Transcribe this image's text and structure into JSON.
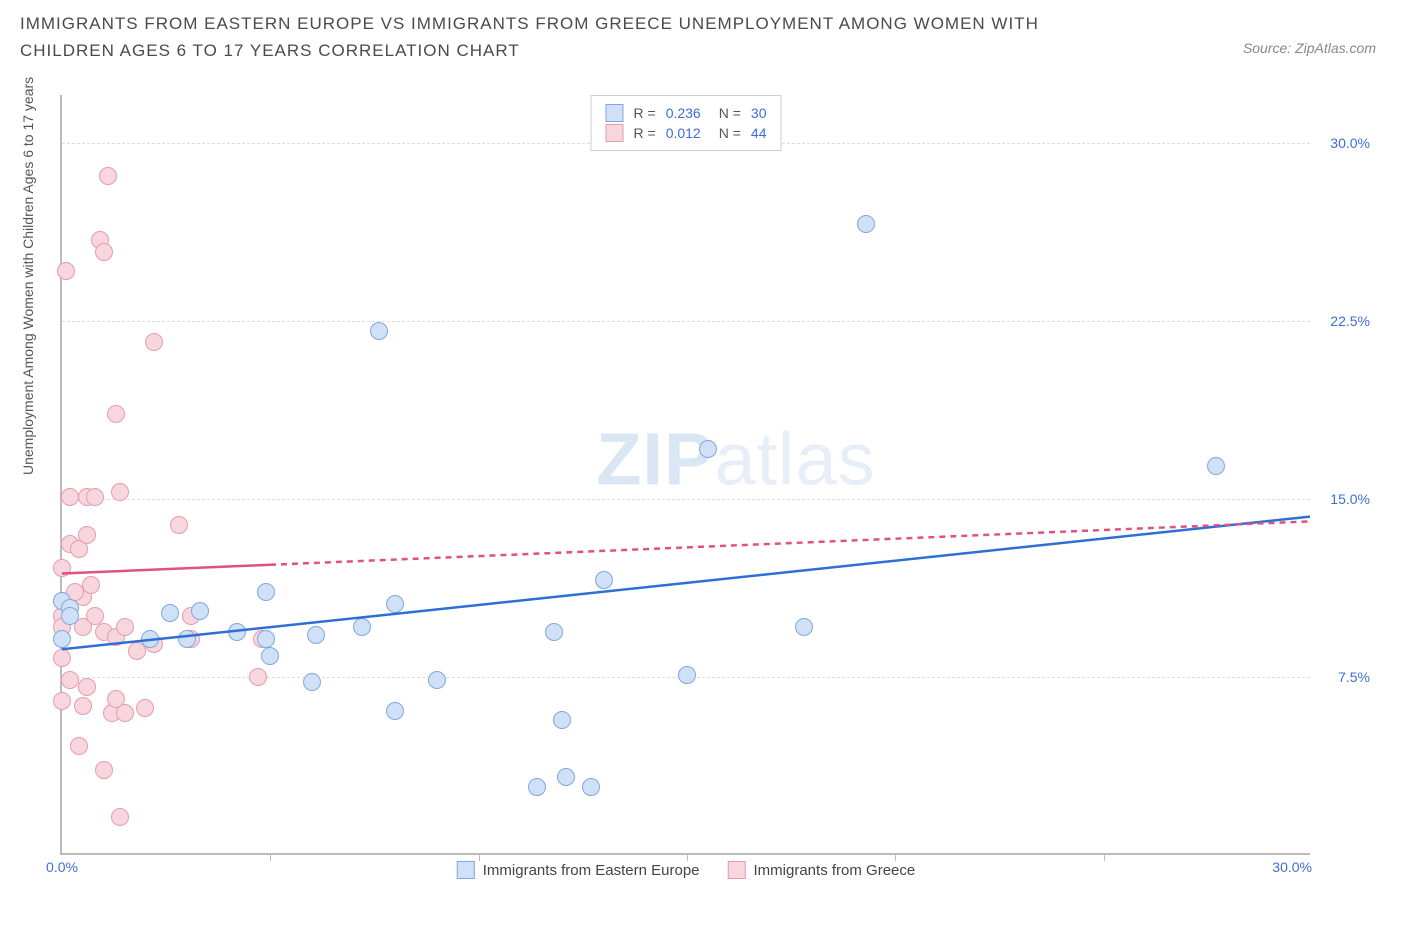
{
  "title": "IMMIGRANTS FROM EASTERN EUROPE VS IMMIGRANTS FROM GREECE UNEMPLOYMENT AMONG WOMEN WITH CHILDREN AGES 6 TO 17 YEARS CORRELATION CHART",
  "source": "Source: ZipAtlas.com",
  "watermark_bold": "ZIP",
  "watermark_light": "atlas",
  "chart": {
    "type": "scatter",
    "background_color": "#ffffff",
    "grid_color": "#dddddd",
    "axis_color": "#bbbbbb",
    "ylabel": "Unemployment Among Women with Children Ages 6 to 17 years",
    "ylabel_fontsize": 14,
    "xlim": [
      0,
      30
    ],
    "ylim": [
      0,
      32
    ],
    "ytick_values": [
      7.5,
      15.0,
      22.5,
      30.0
    ],
    "ytick_labels": [
      "7.5%",
      "15.0%",
      "22.5%",
      "30.0%"
    ],
    "xtick_values": [
      0,
      30
    ],
    "xtick_labels": [
      "0.0%",
      "30.0%"
    ],
    "xtick_minor": [
      5,
      10,
      15,
      20,
      25
    ],
    "marker_radius": 9,
    "marker_stroke_width": 1.4,
    "trend_solid_width": 2.5,
    "trend_dash_pattern": "6,5",
    "series": [
      {
        "name": "Immigrants from Eastern Europe",
        "fill": "#cfe0f7",
        "stroke": "#7fa8e0",
        "swatch_fill": "#cfe0f7",
        "swatch_border": "#7fa8e0",
        "R": "0.236",
        "N": "30",
        "trend": {
          "color": "#2e6fd6",
          "y_at_x0": 8.6,
          "y_at_x30": 14.2,
          "solid_until_x": 30
        },
        "points": [
          [
            0.0,
            10.6
          ],
          [
            0.2,
            10.3
          ],
          [
            0.2,
            10.0
          ],
          [
            0.0,
            9.0
          ],
          [
            2.6,
            10.1
          ],
          [
            3.3,
            10.2
          ],
          [
            2.1,
            9.0
          ],
          [
            3.0,
            9.0
          ],
          [
            4.2,
            9.3
          ],
          [
            4.9,
            9.0
          ],
          [
            5.0,
            8.3
          ],
          [
            6.1,
            9.2
          ],
          [
            6.0,
            7.2
          ],
          [
            7.2,
            9.5
          ],
          [
            8.0,
            6.0
          ],
          [
            8.0,
            10.5
          ],
          [
            9.0,
            7.3
          ],
          [
            4.9,
            11.0
          ],
          [
            7.6,
            22.0
          ],
          [
            11.8,
            9.3
          ],
          [
            12.0,
            5.6
          ],
          [
            12.1,
            3.2
          ],
          [
            12.7,
            2.8
          ],
          [
            11.4,
            2.8
          ],
          [
            13.0,
            11.5
          ],
          [
            15.0,
            7.5
          ],
          [
            15.5,
            17.0
          ],
          [
            17.8,
            9.5
          ],
          [
            19.3,
            26.5
          ],
          [
            27.7,
            16.3
          ]
        ]
      },
      {
        "name": "Immigrants from Greece",
        "fill": "#f7d6de",
        "stroke": "#e89ab0",
        "swatch_fill": "#f7d6de",
        "swatch_border": "#e89ab0",
        "R": "0.012",
        "N": "44",
        "trend": {
          "color": "#e05080",
          "y_at_x0": 11.8,
          "y_at_x30": 14.0,
          "solid_until_x": 5
        },
        "points": [
          [
            0.0,
            8.2
          ],
          [
            0.0,
            10.0
          ],
          [
            0.0,
            10.6
          ],
          [
            0.0,
            12.0
          ],
          [
            0.0,
            9.5
          ],
          [
            0.2,
            7.3
          ],
          [
            0.0,
            6.4
          ],
          [
            0.2,
            13.0
          ],
          [
            0.2,
            15.0
          ],
          [
            0.1,
            24.5
          ],
          [
            0.4,
            4.5
          ],
          [
            0.5,
            6.2
          ],
          [
            0.6,
            7.0
          ],
          [
            0.5,
            10.8
          ],
          [
            0.4,
            12.8
          ],
          [
            0.6,
            13.4
          ],
          [
            0.6,
            15.0
          ],
          [
            0.7,
            11.3
          ],
          [
            0.3,
            11.0
          ],
          [
            0.5,
            9.5
          ],
          [
            0.8,
            10.0
          ],
          [
            0.8,
            15.0
          ],
          [
            0.9,
            25.8
          ],
          [
            1.0,
            25.3
          ],
          [
            1.0,
            9.3
          ],
          [
            1.1,
            28.5
          ],
          [
            1.2,
            5.9
          ],
          [
            1.3,
            18.5
          ],
          [
            1.3,
            6.5
          ],
          [
            1.3,
            9.1
          ],
          [
            1.4,
            15.2
          ],
          [
            1.5,
            5.9
          ],
          [
            1.5,
            9.5
          ],
          [
            1.0,
            3.5
          ],
          [
            1.8,
            8.5
          ],
          [
            1.4,
            1.5
          ],
          [
            2.2,
            21.5
          ],
          [
            2.2,
            8.8
          ],
          [
            2.0,
            6.1
          ],
          [
            2.8,
            13.8
          ],
          [
            3.1,
            10.0
          ],
          [
            3.1,
            9.0
          ],
          [
            4.7,
            7.4
          ],
          [
            4.8,
            9.0
          ]
        ]
      }
    ],
    "legend_bottom": [
      {
        "label": "Immigrants from Eastern Europe",
        "fill": "#cfe0f7",
        "border": "#7fa8e0"
      },
      {
        "label": "Immigrants from Greece",
        "fill": "#f7d6de",
        "border": "#e89ab0"
      }
    ]
  }
}
